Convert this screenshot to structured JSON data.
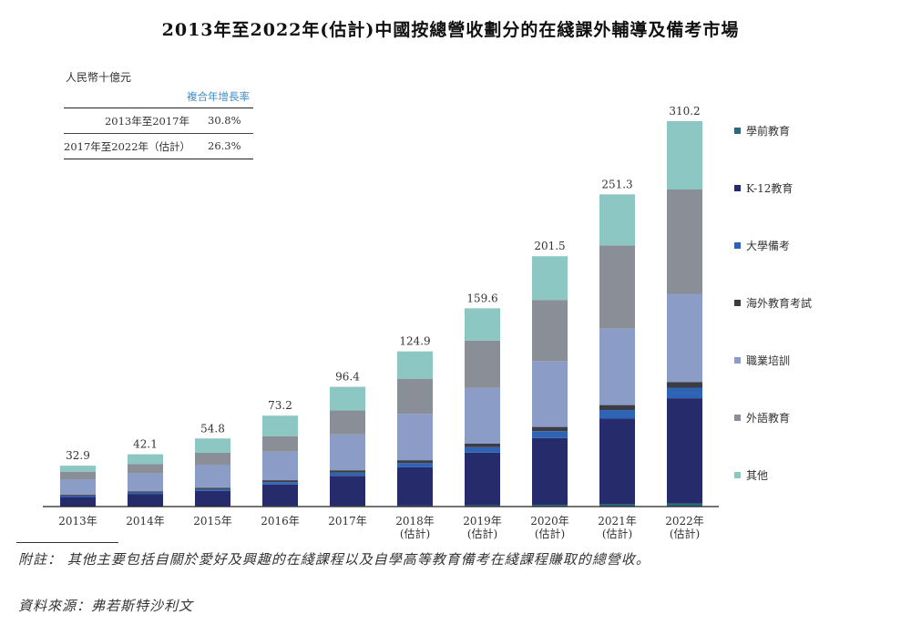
{
  "chart_data": {
    "type": "bar",
    "stacked": true,
    "title": "2013年至2022年(估計)中國按總營收劃分的在綫課外輔導及備考市場",
    "unit_label": "人民幣十億元",
    "categories": [
      [
        "2013年"
      ],
      [
        "2014年"
      ],
      [
        "2015年"
      ],
      [
        "2016年"
      ],
      [
        "2017年"
      ],
      [
        "2018年",
        "(估計)"
      ],
      [
        "2019年",
        "(估計)"
      ],
      [
        "2020年",
        "(估計)"
      ],
      [
        "2021年",
        "(估計)"
      ],
      [
        "2022年",
        "(估計)"
      ]
    ],
    "totals": [
      32.9,
      42.1,
      54.8,
      73.2,
      96.4,
      124.9,
      159.6,
      201.5,
      251.3,
      310.2
    ],
    "series": [
      {
        "name": "學前教育",
        "color": "#2b6b78",
        "values": [
          0.2,
          0.3,
          0.4,
          0.5,
          0.6,
          0.8,
          1.0,
          1.4,
          1.9,
          2.6
        ]
      },
      {
        "name": "K-12教育",
        "color": "#262b6b",
        "values": [
          7.7,
          9.6,
          12.1,
          17.2,
          24.1,
          30.8,
          42.4,
          53.7,
          68.9,
          84.6
        ]
      },
      {
        "name": "大學備考",
        "color": "#2f64b5",
        "values": [
          1.0,
          1.2,
          1.5,
          2.0,
          2.6,
          3.4,
          4.4,
          5.6,
          6.9,
          8.5
        ]
      },
      {
        "name": "海外教育考試",
        "color": "#3c3c44",
        "values": [
          0.8,
          1.0,
          1.2,
          1.5,
          1.9,
          2.3,
          2.8,
          3.4,
          4.0,
          4.6
        ]
      },
      {
        "name": "職業培訓",
        "color": "#8b9cc6",
        "values": [
          12.0,
          14.5,
          18.2,
          23.0,
          28.9,
          37.3,
          45.0,
          53.0,
          61.5,
          70.9
        ]
      },
      {
        "name": "外語教育",
        "color": "#8a8e96",
        "values": [
          6.4,
          7.7,
          9.9,
          12.5,
          19.4,
          28.3,
          38.0,
          49.2,
          67.0,
          84.0
        ]
      },
      {
        "name": "其他",
        "color": "#8dc7c3",
        "values": [
          4.8,
          7.8,
          11.5,
          16.5,
          18.9,
          22.0,
          26.0,
          35.2,
          41.1,
          55.0
        ]
      }
    ],
    "ylim": [
      0,
      330
    ],
    "legend_position": "right"
  },
  "cagr": {
    "header": "複合年增長率",
    "rows": [
      {
        "period": "2013年至2017年",
        "value": "30.8%"
      },
      {
        "period": "2017年至2022年（估計）",
        "value": "26.3%"
      }
    ]
  },
  "note": "附註：  其他主要包括自關於愛好及興趣的在綫課程以及自學高等教育備考在綫課程賺取的總營收。",
  "source": "資料來源：弗若斯特沙利文"
}
